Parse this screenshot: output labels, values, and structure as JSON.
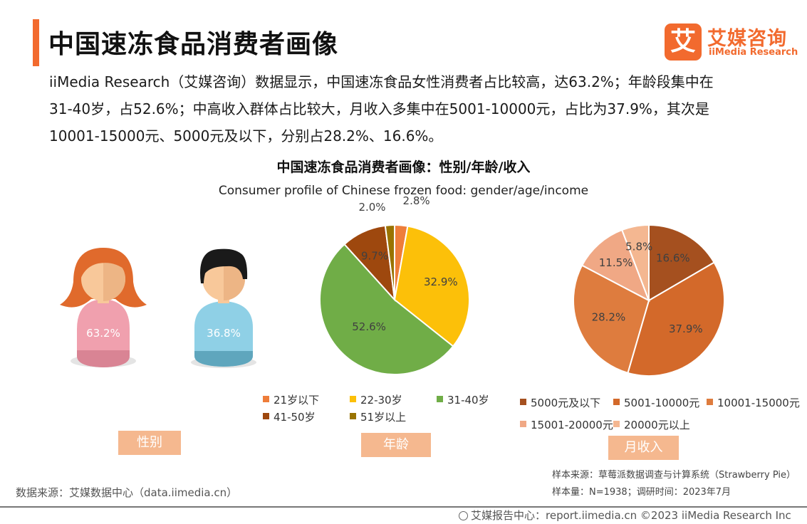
{
  "header": {
    "title": "中国速冻食品消费者画像",
    "logo_icon_char": "艾",
    "logo_cn": "艾媒咨询",
    "logo_en": "iiMedia Research"
  },
  "intro": {
    "line1": "iiMedia  Research（艾媒咨询）数据显示，中国速冻食品女性消费者占比较高，达63.2%；年龄段集中在",
    "line2": "31-40岁，占52.6%；中高收入群体占比较大，月收入多集中在5001-10000元，占比为37.9%，其次是",
    "line3": "10001-15000元、5000元及以下，分别占28.2%、16.6%。"
  },
  "chart_title": "中国速冻食品消费者画像：性别/年龄/收入",
  "chart_subtitle": "Consumer profile of Chinese frozen food: gender/age/income",
  "chart_data": [
    {
      "type": "pictogram",
      "tag": "性别",
      "categories": [
        "female",
        "male"
      ],
      "values": [
        63.2,
        36.8
      ],
      "labels": [
        "63.2%",
        "36.8%"
      ]
    },
    {
      "type": "pie",
      "tag": "年龄",
      "series": [
        {
          "name": "21岁以下",
          "value": 2.8,
          "label": "2.8%",
          "color": "#ee7d3a"
        },
        {
          "name": "22-30岁",
          "value": 32.9,
          "label": "32.9%",
          "color": "#fcc009"
        },
        {
          "name": "31-40岁",
          "value": 52.6,
          "label": "52.6%",
          "color": "#70ad47"
        },
        {
          "name": "41-50岁",
          "value": 9.7,
          "label": "9.7%",
          "color": "#9e480e"
        },
        {
          "name": "51岁以上",
          "value": 2.0,
          "label": "2.0%",
          "color": "#997300"
        }
      ]
    },
    {
      "type": "pie",
      "tag": "月收入",
      "series": [
        {
          "name": "5000元及以下",
          "value": 16.6,
          "label": "16.6%",
          "color": "#a5501f"
        },
        {
          "name": "5001-10000元",
          "value": 37.9,
          "label": "37.9%",
          "color": "#d3692a"
        },
        {
          "name": "10001-15000元",
          "value": 28.2,
          "label": "28.2%",
          "color": "#de7c3e"
        },
        {
          "name": "15001-20000元",
          "value": 11.5,
          "label": "11.5%",
          "color": "#f0a885"
        },
        {
          "name": "20000元以上",
          "value": 5.8,
          "label": "5.8%",
          "color": "#f4b791"
        }
      ]
    }
  ],
  "notes": {
    "sample_source": "样本来源：草莓派数据调查与计算系统（Strawberry Pie）",
    "sample_size": "样本量：N=1938；调研时间：2023年7月",
    "data_source": "数据来源：艾媒数据中心（data.iimedia.cn）"
  },
  "footer": {
    "text": "艾媒报告中心：report.iimedia.cn  ©2023  iiMedia Research  Inc"
  },
  "colors": {
    "accent": "#f26a2e",
    "tag_bg": "#f5b88f",
    "female_skin": "#f8c89a",
    "female_hair": "#e06a2c",
    "female_body": "#f0a0ae",
    "male_hair": "#1a1a1a",
    "male_body": "#8fd0e6"
  }
}
